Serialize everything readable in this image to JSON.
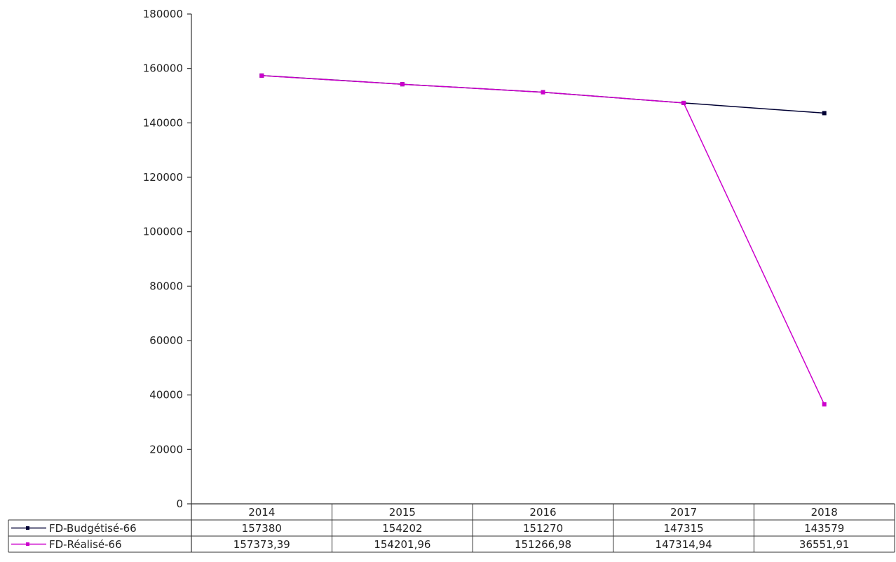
{
  "chart_data": {
    "type": "line",
    "categories": [
      "2014",
      "2015",
      "2016",
      "2017",
      "2018"
    ],
    "ylim": [
      0,
      180000
    ],
    "yticks": [
      "0",
      "20000",
      "40000",
      "60000",
      "80000",
      "100000",
      "120000",
      "140000",
      "160000",
      "180000"
    ],
    "grid": false,
    "legend": "data-table-below",
    "series": [
      {
        "name": "FD-Budgétisé-66",
        "values": [
          157380,
          154202,
          151270,
          147315,
          143579
        ],
        "labels": [
          "157380",
          "154202",
          "151270",
          "147315",
          "143579"
        ],
        "color": "#000033"
      },
      {
        "name": "FD-Réalisé-66",
        "values": [
          157373.39,
          154201.96,
          151266.98,
          147314.94,
          36551.91
        ],
        "labels": [
          "157373,39",
          "154201,96",
          "151266,98",
          "147314,94",
          "36551,91"
        ],
        "color": "#cc00cc"
      }
    ]
  }
}
